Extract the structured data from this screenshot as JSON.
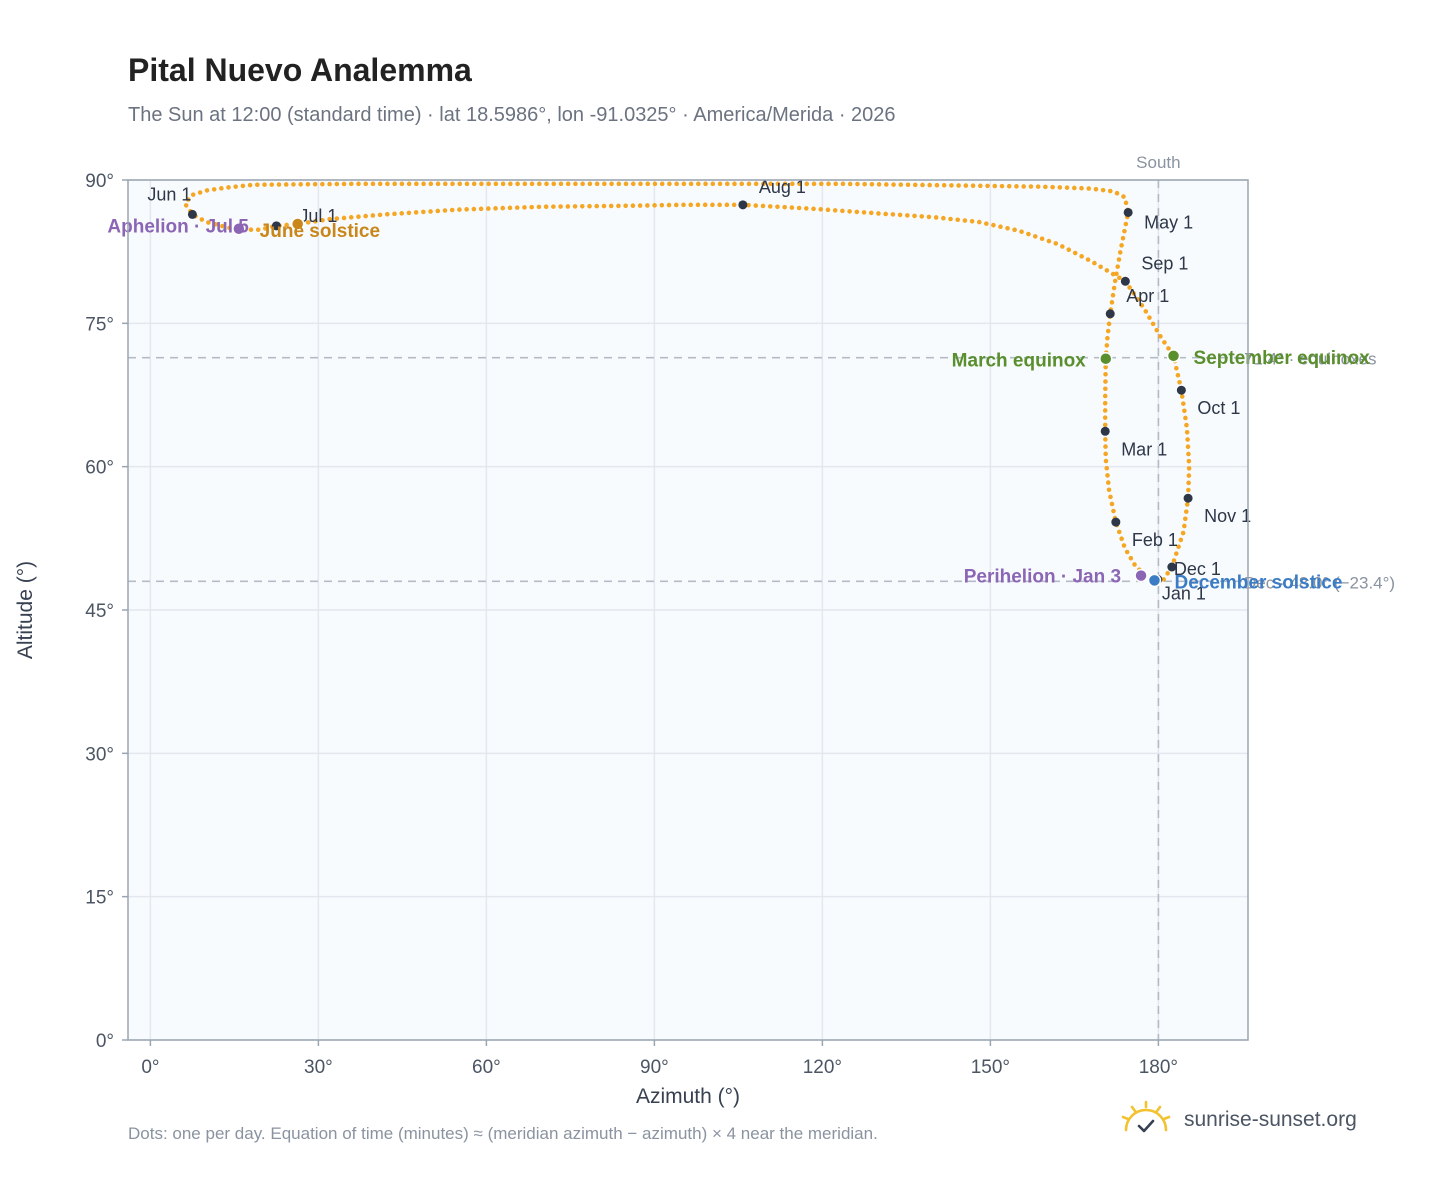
{
  "title": "Pital Nuevo Analemma",
  "subtitle": "The Sun at 12:00 (standard time) · lat 18.5986°, lon -91.0325° · America/Merida · 2026",
  "footnote": "Dots: one per day. Equation of time (minutes) ≈ (meridian azimuth − azimuth) × 4 near the meridian.",
  "brand": {
    "name": "sunrise-sunset.org",
    "icon": "sun-check-icon"
  },
  "colors": {
    "path": "#f5a623",
    "month_marker": "#2d3748",
    "equinox": "#5a8f2e",
    "solstice_june": "#c9861a",
    "solstice_december": "#3b7cc4",
    "apsis": "#8b66b5",
    "plot_bg": "#f8fbfe",
    "grid": "#e3e8ee",
    "axis": "#9aa5b1",
    "reference": "#b3bcc6"
  },
  "chart_data": {
    "type": "scatter",
    "xlabel": "Azimuth (°)",
    "ylabel": "Altitude (°)",
    "xlim": [
      -4,
      196
    ],
    "ylim": [
      0,
      90
    ],
    "xticks": [
      0,
      30,
      60,
      90,
      120,
      150,
      180
    ],
    "yticks": [
      0,
      15,
      30,
      45,
      60,
      75,
      90
    ],
    "tick_suffix": "°",
    "grid": true,
    "meridian": {
      "azimuth": 180,
      "label": "South"
    },
    "reference_lines": [
      {
        "altitude": 71.4,
        "label": "71.4° · equinoxes"
      },
      {
        "altitude": 48.0,
        "label": "Dec · 48.0° (−23.4°)"
      }
    ],
    "month_markers": [
      {
        "label": "Jan 1",
        "az": 179.9,
        "alt": 48.2
      },
      {
        "label": "Feb 1",
        "az": 172.4,
        "alt": 54.2
      },
      {
        "label": "Mar 1",
        "az": 170.5,
        "alt": 63.7
      },
      {
        "label": "Apr 1",
        "az": 171.4,
        "alt": 76.0
      },
      {
        "label": "May 1",
        "az": 174.6,
        "alt": 86.6
      },
      {
        "label": "Jun 1",
        "az": 7.5,
        "alt": 86.4
      },
      {
        "label": "Jul 1",
        "az": 22.5,
        "alt": 85.2
      },
      {
        "label": "Aug 1",
        "az": 105.8,
        "alt": 87.4
      },
      {
        "label": "Sep 1",
        "az": 174.1,
        "alt": 79.4
      },
      {
        "label": "Oct 1",
        "az": 184.1,
        "alt": 68.0
      },
      {
        "label": "Nov 1",
        "az": 185.3,
        "alt": 56.7
      },
      {
        "label": "Dec 1",
        "az": 182.4,
        "alt": 49.5
      }
    ],
    "events": [
      {
        "label": "March equinox",
        "az": 170.6,
        "alt": 71.3,
        "kind": "equinox"
      },
      {
        "label": "September equinox",
        "az": 182.7,
        "alt": 71.6,
        "kind": "equinox"
      },
      {
        "label": "June solstice",
        "az": 26.3,
        "alt": 85.4,
        "kind": "solstice_june"
      },
      {
        "label": "December solstice",
        "az": 179.3,
        "alt": 48.1,
        "kind": "solstice_december"
      },
      {
        "label": "Perihelion · Jan 3",
        "az": 176.9,
        "alt": 48.6,
        "kind": "apsis"
      },
      {
        "label": "Aphelion · Jul 5",
        "az": 15.8,
        "alt": 84.9,
        "kind": "apsis"
      }
    ],
    "path_points": [
      [
        179.9,
        48.2
      ],
      [
        178.5,
        48.3
      ],
      [
        176.0,
        49.5
      ],
      [
        174.0,
        51.5
      ],
      [
        172.4,
        54.2
      ],
      [
        171.2,
        57.5
      ],
      [
        170.6,
        60.8
      ],
      [
        170.5,
        63.7
      ],
      [
        170.5,
        67.0
      ],
      [
        170.6,
        71.3
      ],
      [
        170.9,
        73.5
      ],
      [
        171.4,
        76.0
      ],
      [
        172.3,
        79.5
      ],
      [
        173.3,
        82.8
      ],
      [
        174.6,
        86.6
      ],
      [
        174.0,
        88.2
      ],
      [
        172.0,
        88.8
      ],
      [
        168.0,
        89.1
      ],
      [
        159.0,
        89.3
      ],
      [
        123.5,
        89.6
      ],
      [
        37.0,
        89.6
      ],
      [
        18.5,
        89.5
      ],
      [
        13.5,
        89.2
      ],
      [
        10.0,
        88.9
      ],
      [
        7.3,
        88.4
      ],
      [
        6.2,
        87.5
      ],
      [
        7.5,
        86.4
      ],
      [
        10.0,
        85.6
      ],
      [
        14.0,
        85.0
      ],
      [
        16.5,
        84.8
      ],
      [
        19.5,
        84.8
      ],
      [
        22.5,
        85.2
      ],
      [
        26.3,
        85.4
      ],
      [
        32.0,
        85.9
      ],
      [
        42.0,
        86.4
      ],
      [
        55.0,
        86.9
      ],
      [
        70.0,
        87.2
      ],
      [
        85.0,
        87.3
      ],
      [
        95.0,
        87.4
      ],
      [
        105.8,
        87.4
      ],
      [
        118.0,
        87.0
      ],
      [
        130.0,
        86.5
      ],
      [
        140.0,
        86.1
      ],
      [
        148.0,
        85.6
      ],
      [
        155.0,
        84.7
      ],
      [
        162.0,
        83.3
      ],
      [
        168.0,
        81.5
      ],
      [
        174.1,
        79.4
      ],
      [
        177.5,
        76.5
      ],
      [
        180.5,
        73.5
      ],
      [
        182.7,
        71.6
      ],
      [
        184.1,
        68.0
      ],
      [
        185.1,
        64.0
      ],
      [
        185.5,
        60.0
      ],
      [
        185.3,
        56.7
      ],
      [
        184.5,
        53.2
      ],
      [
        182.4,
        49.5
      ],
      [
        180.7,
        48.0
      ],
      [
        179.9,
        48.2
      ]
    ]
  }
}
